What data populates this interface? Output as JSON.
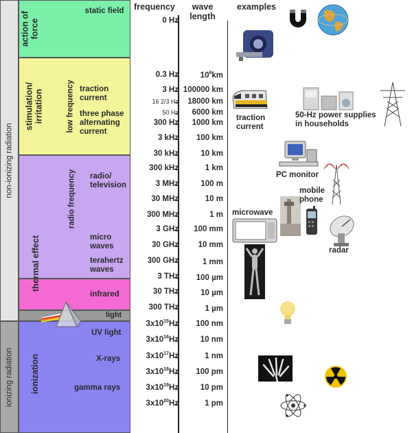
{
  "headers": {
    "frequency": "frequency",
    "wave_length_1": "wave",
    "wave_length_2": "length",
    "examples": "examples"
  },
  "groups": {
    "non_ionizing": "non-ionizing radiation",
    "ionizing": "ionizing radiation"
  },
  "effects": {
    "action_of_force": "action of force",
    "stimulation": "stimulation/ irritation",
    "thermal": "thermal effect",
    "ionization": "ionization",
    "low_frequency": "low frequency",
    "radio_frequency": "radio frequency"
  },
  "categories": {
    "static_field": "static field",
    "traction_current": "traction current",
    "three_phase": "three phase alternating current",
    "radio_tv": "radio/ television",
    "micro_waves": "micro waves",
    "terahertz": "terahertz waves",
    "infrared": "infrared",
    "light": "light",
    "uv": "UV light",
    "xrays": "X-rays",
    "gamma": "gamma rays"
  },
  "frequencies": {
    "f0": "0 Hz",
    "f1": "0.3 Hz",
    "f2": "3 Hz",
    "f3": "16 2/3 Hz",
    "f4": "50 Hz",
    "f5": "300 Hz",
    "f6": "3 kHz",
    "f7": "30 kHz",
    "f8": "300 kHz",
    "f9": "3 MHz",
    "f10": "30 MHz",
    "f11": "300 MHz",
    "f12": "3 GHz",
    "f13": "30 GHz",
    "f14": "300 GHz",
    "f15": "3 THz",
    "f16": "30 THz",
    "f17": "300 THz",
    "exp15": "15",
    "exp16": "16",
    "exp17": "17",
    "exp18": "18",
    "exp19": "19",
    "exp20": "20",
    "sci_base": "3x10",
    "sci_unit": "Hz"
  },
  "wavelengths": {
    "w1_base": "10",
    "w1_exp": "6",
    "w1_unit": "km",
    "w2": "100000 km",
    "w3": "18000 km",
    "w4": "6000 km",
    "w5": "1000 km",
    "w6": "100 km",
    "w7": "10 km",
    "w8": "1 km",
    "w9": "100 m",
    "w10": "10 m",
    "w11": "1 m",
    "w12": "100 mm",
    "w13": "10 mm",
    "w14": "1 mm",
    "w15": "100 µm",
    "w16": "10 µm",
    "w17": "1 µm",
    "w18": "100 nm",
    "w19": "10 nm",
    "w20": "1 nm",
    "w21": "100 pm",
    "w22": "10 pm",
    "w23": "1 pm"
  },
  "examples": {
    "traction_current": "traction current",
    "power_supplies": "50-Hz power supplies in households",
    "pc_monitor": "PC monitor",
    "mobile_phone": "mobile phone",
    "microwave": "microwave",
    "radar": "radar"
  },
  "colors": {
    "static": "#7af0a8",
    "low_freq": "#f4f59a",
    "radio": "#c8a6f0",
    "infrared": "#f36ad2",
    "light": "#9a9a9a",
    "ionizing": "#8a83f2",
    "side_non_ionizing": "#e4e4e4",
    "side_ionizing": "#a9a9a9"
  }
}
